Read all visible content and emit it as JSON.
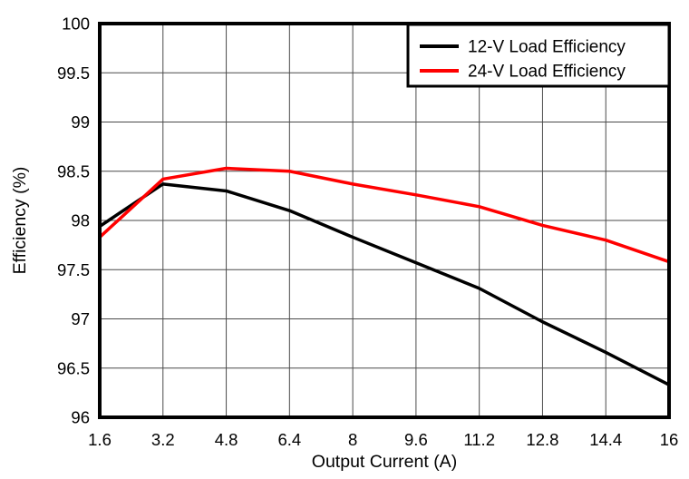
{
  "chart_data": {
    "type": "line",
    "title": "",
    "xlabel": "Output Current (A)",
    "ylabel": "Efficiency (%)",
    "x": [
      1.6,
      3.2,
      4.8,
      6.4,
      8,
      9.6,
      11.2,
      12.8,
      14.4,
      16
    ],
    "x_tick_labels": [
      "1.6",
      "3.2",
      "4.8",
      "6.4",
      "8",
      "9.6",
      "11.2",
      "12.8",
      "14.4",
      "16"
    ],
    "xlim": [
      1.6,
      16
    ],
    "y_ticks": [
      96,
      96.5,
      97,
      97.5,
      98,
      98.5,
      99,
      99.5,
      100
    ],
    "y_tick_labels": [
      "96",
      "96.5",
      "97",
      "97.5",
      "98",
      "98.5",
      "99",
      "99.5",
      "100"
    ],
    "ylim": [
      96,
      100
    ],
    "grid": true,
    "legend_position": "top-right",
    "series": [
      {
        "name": "12-V Load Efficiency",
        "color": "#000000",
        "values": [
          97.94,
          98.37,
          98.3,
          98.1,
          97.83,
          97.57,
          97.31,
          96.97,
          96.66,
          96.33
        ]
      },
      {
        "name": "24-V Load Efficiency",
        "color": "#ff0000",
        "values": [
          97.83,
          98.42,
          98.53,
          98.5,
          98.37,
          98.26,
          98.14,
          97.95,
          97.8,
          97.58
        ]
      }
    ],
    "colors": {
      "background": "#ffffff",
      "axis_border": "#000000",
      "gridline": "#4a4a4a",
      "tick_label": "#000000"
    }
  }
}
